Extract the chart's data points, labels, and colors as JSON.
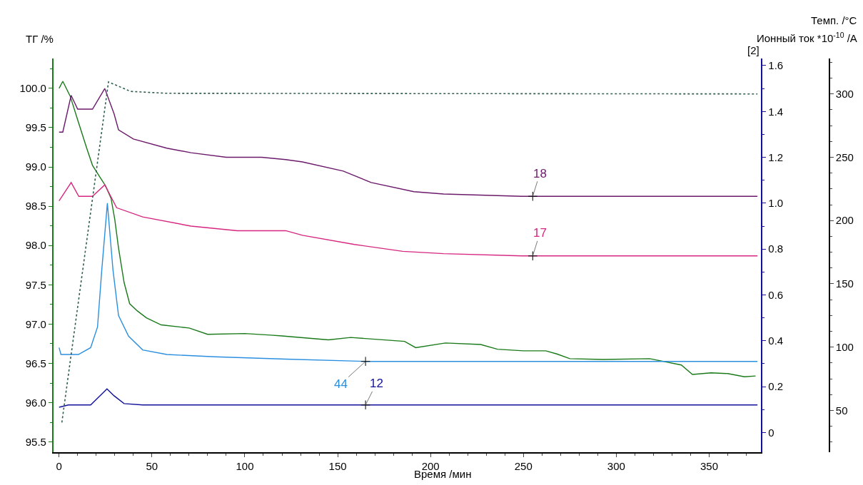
{
  "chart_data": {
    "type": "line",
    "xlabel": "Время /мин",
    "ylabel": "ТГ /%",
    "y2label": "Ионный ток *10$^{-10}$ /A",
    "y3label": "Темп. /°C",
    "annotations": [
      "[2]"
    ],
    "xlim": [
      -3,
      378
    ],
    "xticks": [
      0,
      50,
      100,
      150,
      200,
      250,
      300,
      350
    ],
    "ylim": [
      95.37,
      100.38
    ],
    "yticks": [
      95.5,
      {
        "value": 96,
        "label": "96.0"
      },
      96.5,
      {
        "value": 97,
        "label": "97.0"
      },
      97.5,
      {
        "value": 98,
        "label": "98.0"
      },
      98.5,
      {
        "value": 99,
        "label": "99.0"
      },
      99.5,
      {
        "value": 100,
        "label": "100.0"
      }
    ],
    "y2lim": [
      -0.086,
      1.631
    ],
    "y2ticks": [
      0,
      0.2,
      0.4,
      0.6,
      0.8,
      {
        "value": 1,
        "label": "1.0"
      },
      1.2,
      1.4,
      1.6
    ],
    "y3lim": [
      17,
      328
    ],
    "y3ticks": [
      50,
      100,
      150,
      200,
      250,
      300
    ],
    "legend": false,
    "marker": "none",
    "series": [
      {
        "color": "#1a7a1a",
        "line_style": "solid",
        "x": [
          0,
          2,
          6,
          10,
          15,
          18,
          22,
          25,
          28,
          30,
          32,
          35,
          38,
          42,
          47,
          55,
          70,
          80,
          100,
          114,
          120,
          145,
          157,
          186,
          192,
          208,
          227,
          236,
          250,
          262,
          268,
          275,
          293,
          318,
          335,
          341,
          351,
          360,
          369,
          375
        ],
        "values": [
          100.0,
          100.09,
          99.9,
          99.6,
          99.23,
          99.02,
          98.87,
          98.76,
          98.6,
          98.33,
          97.97,
          97.53,
          97.26,
          97.17,
          97.08,
          96.99,
          96.95,
          96.87,
          96.88,
          96.86,
          96.85,
          96.8,
          96.83,
          96.78,
          96.7,
          96.76,
          96.74,
          96.68,
          96.66,
          96.66,
          96.62,
          96.56,
          96.55,
          96.56,
          96.48,
          96.36,
          96.38,
          96.37,
          96.33,
          96.34
        ]
      },
      {
        "name": "18",
        "axis": "y2",
        "color": "#6b1a6b",
        "line_style": "solid",
        "x": [
          0,
          2,
          6.5,
          10,
          18,
          24.6,
          29.6,
          32,
          40,
          58,
          71,
          90,
          109,
          122,
          131,
          153,
          168,
          191,
          207,
          249,
          300,
          376
        ],
        "values": [
          1.31,
          1.31,
          1.47,
          1.41,
          1.41,
          1.5,
          1.39,
          1.32,
          1.28,
          1.24,
          1.22,
          1.2,
          1.2,
          1.19,
          1.18,
          1.14,
          1.09,
          1.05,
          1.04,
          1.03,
          1.03,
          1.03
        ]
      },
      {
        "name": "17",
        "axis": "y2",
        "color": "#d6267f",
        "line_style": "solid",
        "x": [
          0,
          6.5,
          10.6,
          18,
          24.6,
          31,
          45,
          71,
          96,
          122,
          131,
          159,
          185,
          207,
          249,
          300,
          376
        ],
        "values": [
          1.01,
          1.09,
          1.03,
          1.03,
          1.08,
          0.98,
          0.94,
          0.9,
          0.88,
          0.88,
          0.86,
          0.82,
          0.79,
          0.78,
          0.77,
          0.77,
          0.77
        ]
      },
      {
        "name": "44",
        "axis": "y2",
        "color": "#2b8fe0",
        "line_style": "solid",
        "x": [
          0,
          1,
          10.4,
          17,
          20.7,
          23,
          26,
          29,
          32,
          37.4,
          45,
          58,
          84,
          122,
          165,
          250,
          376
        ],
        "values": [
          0.37,
          0.34,
          0.34,
          0.37,
          0.46,
          0.71,
          1.0,
          0.71,
          0.51,
          0.42,
          0.36,
          0.34,
          0.33,
          0.32,
          0.31,
          0.31,
          0.31
        ]
      },
      {
        "name": "12",
        "axis": "y2",
        "color": "#10109a",
        "line_style": "solid",
        "x": [
          0,
          5,
          17,
          22,
          25.8,
          29.6,
          35,
          45,
          165,
          376
        ],
        "values": [
          0.11,
          0.12,
          0.12,
          0.16,
          0.19,
          0.16,
          0.126,
          0.12,
          0.12,
          0.12
        ]
      },
      {
        "axis": "y3",
        "color": "#2f5f4f",
        "line_style": "dotted",
        "x": [
          1.5,
          26.6,
          38.5,
          58,
          376
        ],
        "values": [
          40.5,
          309.5,
          302,
          300.5,
          300
        ]
      }
    ]
  }
}
